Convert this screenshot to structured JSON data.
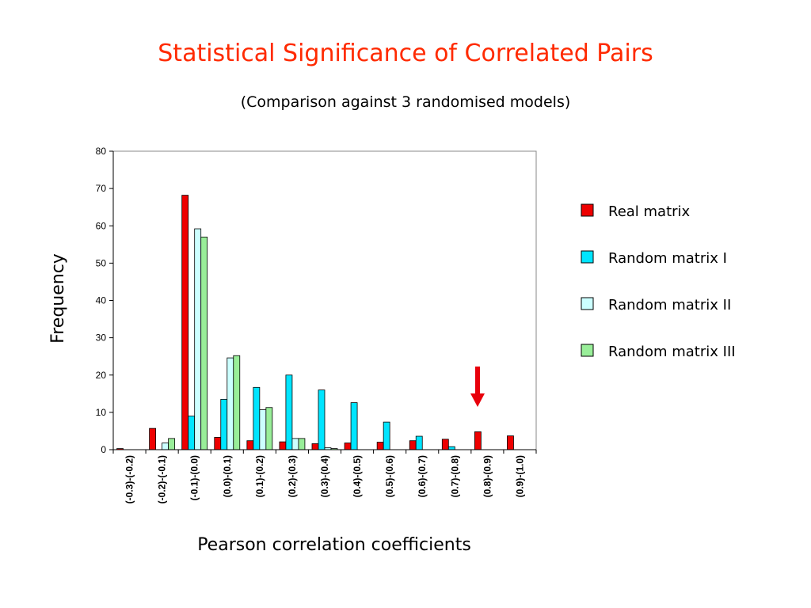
{
  "slide": {
    "title": "Statistical Significance of Correlated Pairs",
    "subtitle": "(Comparison against 3 randomised models)"
  },
  "colors": {
    "title": "#ff2a00",
    "arrow": "#e8000b"
  },
  "chart_data": {
    "type": "bar",
    "xlabel": "Pearson correlation coefficients",
    "ylabel": "Frequency",
    "ylim": [
      0,
      80
    ],
    "yticks": [
      0,
      10,
      20,
      30,
      40,
      50,
      60,
      70,
      80
    ],
    "grid": false,
    "legend_position": "right",
    "categories": [
      "(-0.3)-(-0.2)",
      "(-0.2)-(-0.1)",
      "(-0.1)-(0.0)",
      "(0.0)-(0.1)",
      "(0.1)-(0.2)",
      "(0.2)-(0.3)",
      "(0.3)-(0.4)",
      "(0.4)-(0.5)",
      "(0.5)-(0.6)",
      "(0.6)-(0.7)",
      "(0.7)-(0.8)",
      "(0.8)-(0.9)",
      "(0.9)-(1.0)"
    ],
    "series": [
      {
        "name": "Real matrix",
        "color": "#ee0000",
        "values": [
          0.3,
          5.7,
          68.2,
          3.3,
          2.4,
          2.1,
          1.6,
          1.8,
          2.0,
          2.4,
          2.8,
          4.8,
          3.7
        ]
      },
      {
        "name": "Random matrix I",
        "color": "#00e5ff",
        "values": [
          0,
          0,
          9.0,
          13.5,
          16.7,
          20.0,
          16.0,
          12.6,
          7.4,
          3.6,
          0.8,
          0,
          0
        ]
      },
      {
        "name": "Random matrix II",
        "color": "#ccffff",
        "values": [
          0,
          1.8,
          59.2,
          24.6,
          10.7,
          3.0,
          0.5,
          0,
          0,
          0,
          0,
          0,
          0
        ]
      },
      {
        "name": "Random matrix III",
        "color": "#99ee99",
        "values": [
          0,
          3.0,
          57.0,
          25.2,
          11.3,
          3.0,
          0.3,
          0,
          0,
          0,
          0,
          0,
          0
        ]
      }
    ],
    "annotations": [
      {
        "type": "arrow",
        "category": "(0.8)-(0.9)",
        "pointing": "down"
      }
    ]
  }
}
